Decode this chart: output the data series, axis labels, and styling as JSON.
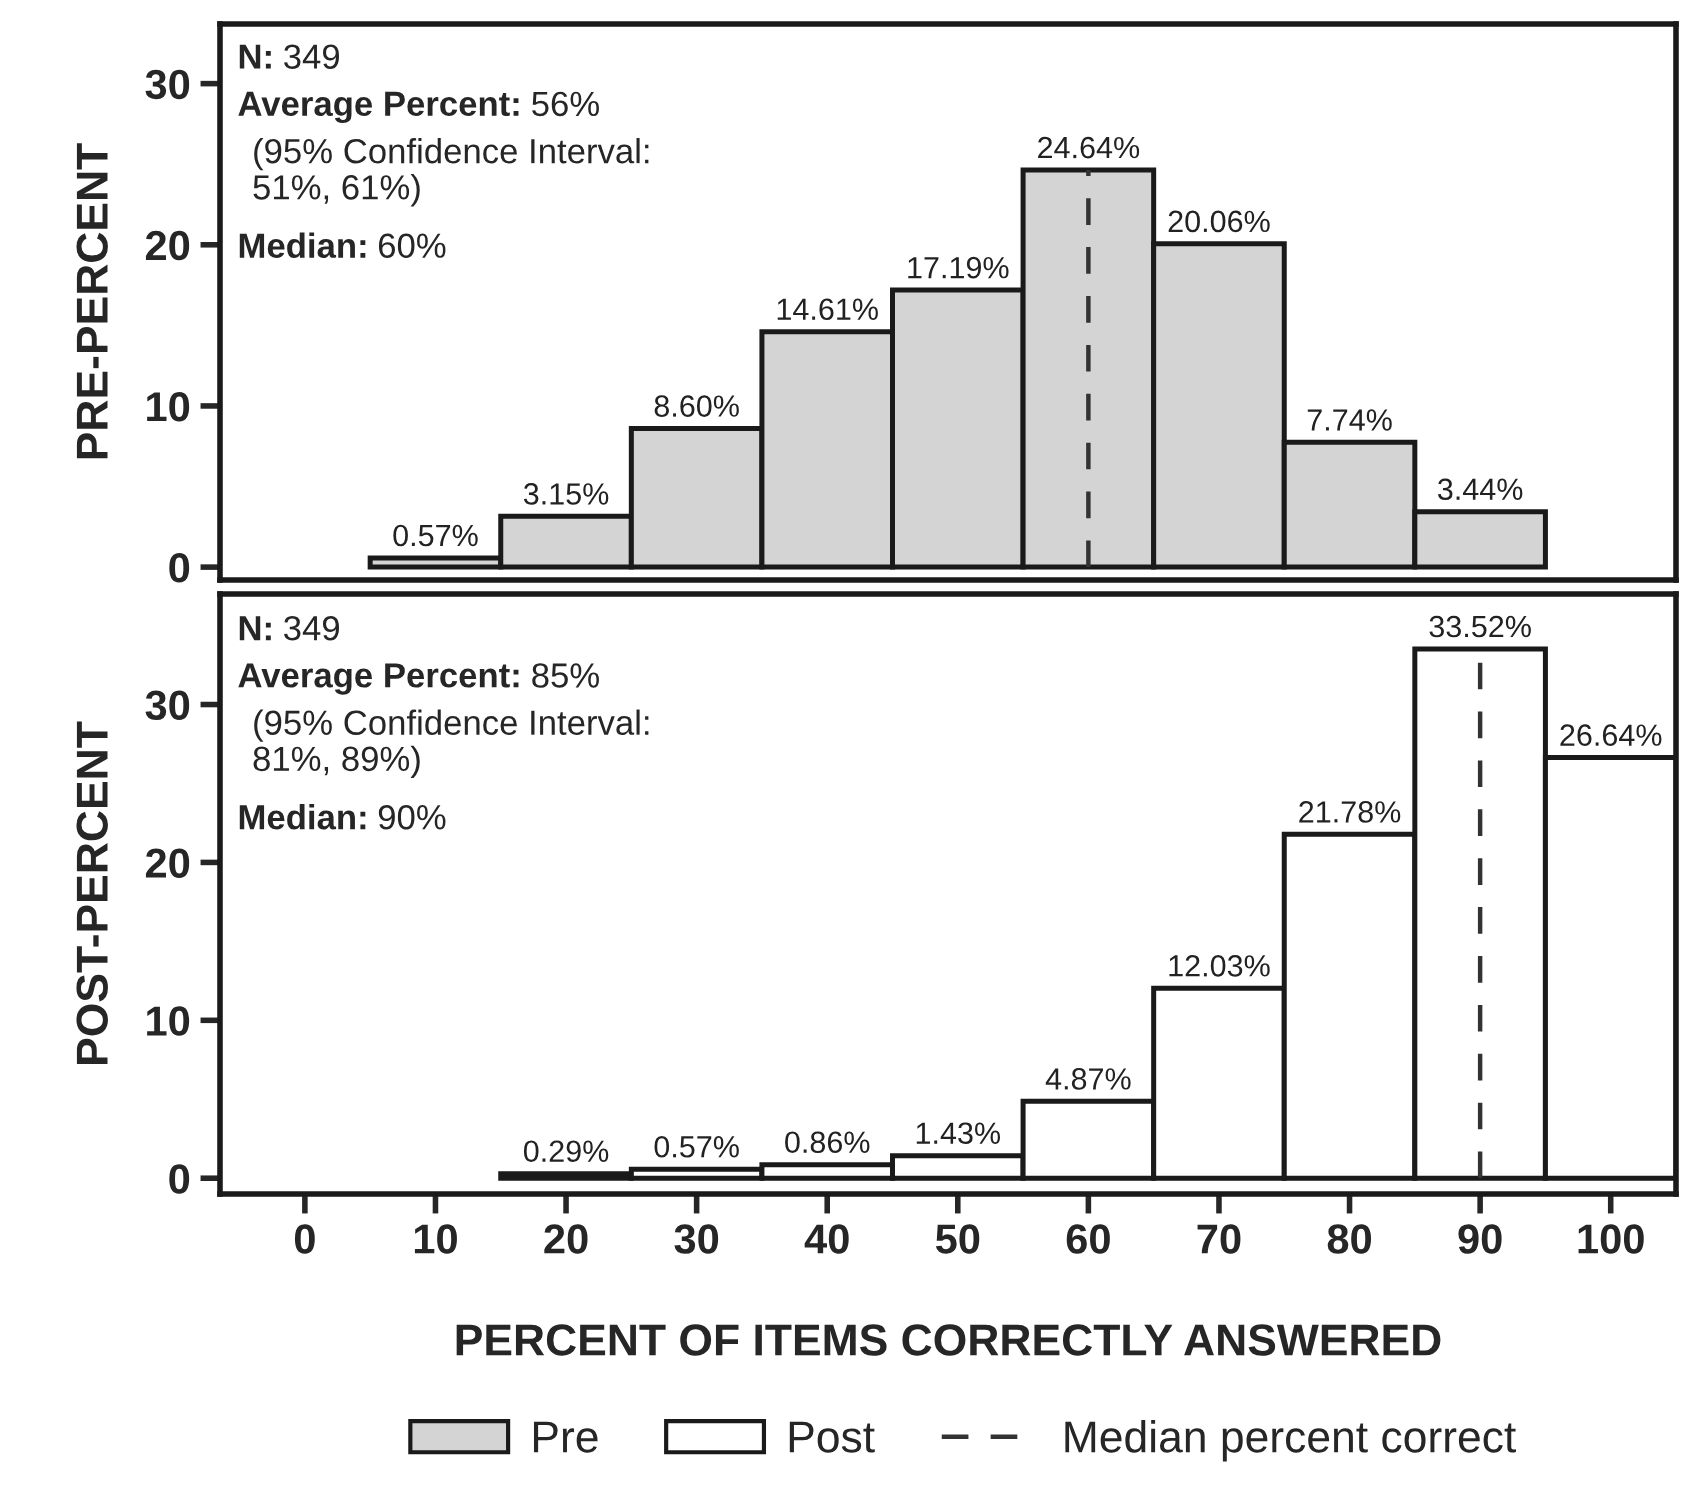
{
  "chart_data": [
    {
      "type": "histogram",
      "ylabel": "PRE-PERCENT",
      "bins": [
        5,
        15,
        25,
        35,
        45,
        55,
        65,
        75,
        85,
        95
      ],
      "series": [
        {
          "name": "Pre",
          "color": "#d3d4d3",
          "values": [
            0.57,
            3.15,
            8.6,
            14.61,
            17.19,
            24.64,
            20.06,
            7.74,
            3.44
          ],
          "value_labels": [
            "0.57%",
            "3.15%",
            "8.60%",
            "14.61%",
            "17.19%",
            "24.64%",
            "20.06%",
            "7.74%",
            "3.44%"
          ]
        }
      ],
      "xlim": [
        -6.5,
        105
      ],
      "xticks": [
        0,
        10,
        20,
        30,
        40,
        50,
        60,
        70,
        80,
        90,
        100
      ],
      "ylim": [
        -0.8,
        33.7
      ],
      "yticks": [
        0,
        10,
        20,
        30
      ],
      "tick_labels": "y",
      "grid": false,
      "legend": "bottom",
      "ref_lines": [
        {
          "axis": "x",
          "value": 60,
          "label": "Median percent correct",
          "line_style": "dashed"
        }
      ],
      "annotations": [
        "N: 349",
        "Average Percent: 56%",
        "(95% Confidence Interval:\n51%, 61%)",
        "Median: 60%"
      ]
    },
    {
      "type": "histogram",
      "ylabel": "POST-PERCENT",
      "xlabel": "PERCENT OF ITEMS CORRECTLY ANSWERED",
      "bins": [
        15,
        25,
        35,
        45,
        55,
        65,
        75,
        85,
        95,
        105
      ],
      "series": [
        {
          "name": "Post",
          "color": "#ffffff",
          "values": [
            0.29,
            0.57,
            0.86,
            1.43,
            4.87,
            12.03,
            21.78,
            33.52,
            26.64
          ],
          "value_labels": [
            "0.29%",
            "0.57%",
            "0.86%",
            "1.43%",
            "4.87%",
            "12.03%",
            "21.78%",
            "33.52%",
            "26.64%"
          ]
        }
      ],
      "xlim": [
        -6.5,
        105
      ],
      "xticks": [
        0,
        10,
        20,
        30,
        40,
        50,
        60,
        70,
        80,
        90,
        100
      ],
      "ylim": [
        -1,
        37
      ],
      "yticks": [
        0,
        10,
        20,
        30
      ],
      "grid": false,
      "legend": "bottom",
      "ref_lines": [
        {
          "axis": "x",
          "value": 90,
          "line_style": "dashed"
        }
      ],
      "annotations": [
        "N: 349",
        "Average Percent: 85%",
        "(95% Confidence Interval:\n81%, 89%)",
        "Median: 90%"
      ]
    }
  ]
}
